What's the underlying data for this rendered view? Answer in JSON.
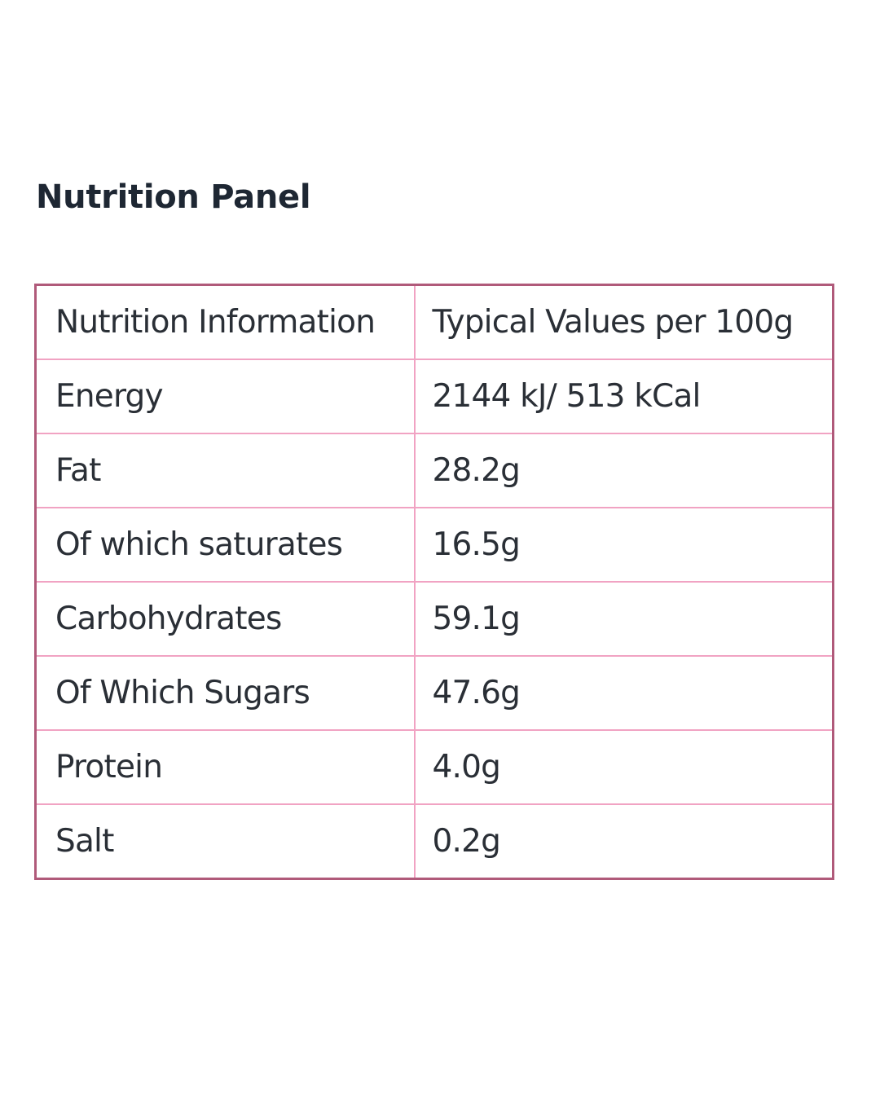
{
  "title": "Nutrition Panel",
  "table": {
    "header": {
      "label": "Nutrition Information",
      "value": "Typical Values per 100g"
    },
    "rows": [
      {
        "label": "Energy",
        "value": "2144 kJ/ 513 kCal"
      },
      {
        "label": "Fat",
        "value": "28.2g"
      },
      {
        "label": "Of which saturates",
        "value": "16.5g"
      },
      {
        "label": "Carbohydrates",
        "value": "59.1g"
      },
      {
        "label": "Of Which Sugars",
        "value": "47.6g"
      },
      {
        "label": "Protein",
        "value": "4.0g"
      },
      {
        "label": "Salt",
        "value": "0.2g"
      }
    ]
  },
  "colors": {
    "outer_border": "#b05a7a",
    "inner_border": "#f1a3c3",
    "title_text": "#1e2733",
    "cell_text": "#2a2f36"
  }
}
